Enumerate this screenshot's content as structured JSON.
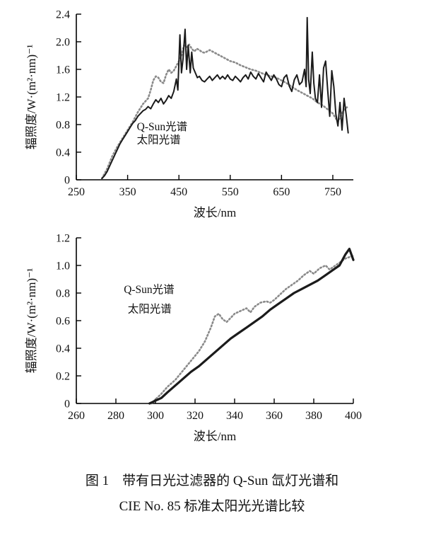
{
  "colors": {
    "axis": "#000000",
    "qsun_line_top": "#1b1b1b",
    "solar_dotted_top": "#8a8a8a",
    "qsun_dotted_bottom": "#8a8a8a",
    "solar_line_bottom": "#1b1b1b",
    "background": "#ffffff"
  },
  "caption": {
    "line1": "图 1　带有日光过滤器的 Q-Sun 氙灯光谱和",
    "line2": "CIE No. 85 标准太阳光光谱比较"
  },
  "chart_data": [
    {
      "type": "line",
      "title": "",
      "xlabel": "波长/nm",
      "ylabel": "辐照度/W·(m²·nm)⁻¹",
      "xlim": [
        250,
        790
      ],
      "ylim": [
        0,
        2.4
      ],
      "xticks": [
        250,
        350,
        450,
        550,
        650,
        750
      ],
      "xtick_labels": [
        "250",
        "350",
        "450",
        "550",
        "650",
        "750"
      ],
      "yticks": [
        0,
        0.4,
        0.8,
        1.2,
        1.6,
        2.0,
        2.4
      ],
      "ytick_labels": [
        "0",
        "0.4",
        "0.8",
        "1.2",
        "1.6",
        "2.0",
        "2.4"
      ],
      "grid": false,
      "legend_position": "inside-left",
      "annotations": [
        {
          "text": "Q-Sun光谱",
          "x": 368,
          "y": 0.72
        },
        {
          "text": "太阳光谱",
          "x": 368,
          "y": 0.53
        }
      ],
      "series": [
        {
          "name": "太阳光谱",
          "style": "dotted",
          "color": "#8a8a8a",
          "width": 2.6,
          "points": [
            [
              300,
              0.02
            ],
            [
              310,
              0.16
            ],
            [
              320,
              0.34
            ],
            [
              330,
              0.48
            ],
            [
              340,
              0.6
            ],
            [
              350,
              0.72
            ],
            [
              360,
              0.84
            ],
            [
              370,
              0.98
            ],
            [
              380,
              1.1
            ],
            [
              390,
              1.18
            ],
            [
              395,
              1.3
            ],
            [
              400,
              1.44
            ],
            [
              405,
              1.5
            ],
            [
              410,
              1.48
            ],
            [
              415,
              1.42
            ],
            [
              420,
              1.4
            ],
            [
              425,
              1.52
            ],
            [
              430,
              1.6
            ],
            [
              435,
              1.55
            ],
            [
              440,
              1.58
            ],
            [
              445,
              1.65
            ],
            [
              450,
              1.72
            ],
            [
              455,
              1.8
            ],
            [
              460,
              1.95
            ],
            [
              465,
              1.92
            ],
            [
              470,
              1.96
            ],
            [
              475,
              1.9
            ],
            [
              480,
              1.86
            ],
            [
              485,
              1.9
            ],
            [
              490,
              1.88
            ],
            [
              495,
              1.85
            ],
            [
              500,
              1.84
            ],
            [
              510,
              1.88
            ],
            [
              520,
              1.84
            ],
            [
              530,
              1.8
            ],
            [
              540,
              1.76
            ],
            [
              550,
              1.72
            ],
            [
              560,
              1.7
            ],
            [
              570,
              1.66
            ],
            [
              580,
              1.63
            ],
            [
              590,
              1.6
            ],
            [
              600,
              1.58
            ],
            [
              610,
              1.55
            ],
            [
              620,
              1.52
            ],
            [
              630,
              1.5
            ],
            [
              640,
              1.48
            ],
            [
              650,
              1.44
            ],
            [
              660,
              1.4
            ],
            [
              670,
              1.35
            ],
            [
              680,
              1.3
            ],
            [
              690,
              1.26
            ],
            [
              700,
              1.22
            ],
            [
              710,
              1.18
            ],
            [
              720,
              1.12
            ],
            [
              730,
              1.08
            ],
            [
              740,
              1.02
            ],
            [
              750,
              0.96
            ],
            [
              755,
              0.9
            ],
            [
              760,
              0.84
            ],
            [
              765,
              0.92
            ],
            [
              770,
              1.0
            ],
            [
              775,
              1.04
            ],
            [
              780,
              1.06
            ]
          ]
        },
        {
          "name": "Q-Sun光谱",
          "style": "solid",
          "color": "#1b1b1b",
          "width": 2,
          "points": [
            [
              300,
              0.02
            ],
            [
              305,
              0.06
            ],
            [
              310,
              0.12
            ],
            [
              315,
              0.2
            ],
            [
              320,
              0.28
            ],
            [
              325,
              0.36
            ],
            [
              330,
              0.44
            ],
            [
              335,
              0.52
            ],
            [
              340,
              0.58
            ],
            [
              345,
              0.64
            ],
            [
              350,
              0.7
            ],
            [
              355,
              0.76
            ],
            [
              360,
              0.82
            ],
            [
              365,
              0.86
            ],
            [
              370,
              0.92
            ],
            [
              375,
              0.96
            ],
            [
              380,
              1.0
            ],
            [
              385,
              1.02
            ],
            [
              390,
              1.06
            ],
            [
              395,
              1.03
            ],
            [
              400,
              1.1
            ],
            [
              405,
              1.16
            ],
            [
              410,
              1.12
            ],
            [
              415,
              1.18
            ],
            [
              420,
              1.1
            ],
            [
              425,
              1.15
            ],
            [
              430,
              1.22
            ],
            [
              435,
              1.18
            ],
            [
              440,
              1.28
            ],
            [
              445,
              1.46
            ],
            [
              448,
              1.3
            ],
            [
              452,
              2.1
            ],
            [
              455,
              1.55
            ],
            [
              458,
              1.75
            ],
            [
              462,
              2.18
            ],
            [
              465,
              1.6
            ],
            [
              468,
              1.95
            ],
            [
              472,
              1.55
            ],
            [
              475,
              1.85
            ],
            [
              478,
              1.62
            ],
            [
              482,
              1.55
            ],
            [
              486,
              1.48
            ],
            [
              490,
              1.5
            ],
            [
              495,
              1.44
            ],
            [
              500,
              1.42
            ],
            [
              505,
              1.46
            ],
            [
              510,
              1.5
            ],
            [
              515,
              1.44
            ],
            [
              520,
              1.48
            ],
            [
              525,
              1.52
            ],
            [
              530,
              1.46
            ],
            [
              535,
              1.5
            ],
            [
              540,
              1.46
            ],
            [
              545,
              1.52
            ],
            [
              550,
              1.46
            ],
            [
              555,
              1.44
            ],
            [
              560,
              1.5
            ],
            [
              565,
              1.46
            ],
            [
              570,
              1.42
            ],
            [
              575,
              1.48
            ],
            [
              580,
              1.52
            ],
            [
              585,
              1.46
            ],
            [
              590,
              1.56
            ],
            [
              595,
              1.5
            ],
            [
              600,
              1.46
            ],
            [
              605,
              1.54
            ],
            [
              610,
              1.48
            ],
            [
              615,
              1.42
            ],
            [
              620,
              1.56
            ],
            [
              625,
              1.5
            ],
            [
              630,
              1.44
            ],
            [
              635,
              1.52
            ],
            [
              640,
              1.46
            ],
            [
              645,
              1.38
            ],
            [
              650,
              1.35
            ],
            [
              655,
              1.48
            ],
            [
              660,
              1.52
            ],
            [
              665,
              1.36
            ],
            [
              670,
              1.28
            ],
            [
              675,
              1.45
            ],
            [
              680,
              1.52
            ],
            [
              685,
              1.38
            ],
            [
              690,
              1.42
            ],
            [
              695,
              1.6
            ],
            [
              698,
              1.35
            ],
            [
              700,
              2.35
            ],
            [
              703,
              1.45
            ],
            [
              706,
              1.25
            ],
            [
              710,
              1.85
            ],
            [
              713,
              1.4
            ],
            [
              716,
              1.18
            ],
            [
              720,
              1.12
            ],
            [
              724,
              1.52
            ],
            [
              728,
              1.05
            ],
            [
              732,
              1.62
            ],
            [
              736,
              1.72
            ],
            [
              740,
              1.3
            ],
            [
              744,
              0.92
            ],
            [
              748,
              1.58
            ],
            [
              752,
              1.35
            ],
            [
              756,
              0.95
            ],
            [
              760,
              0.78
            ],
            [
              764,
              1.12
            ],
            [
              768,
              0.72
            ],
            [
              772,
              1.18
            ],
            [
              776,
              0.95
            ],
            [
              780,
              0.68
            ]
          ]
        }
      ]
    },
    {
      "type": "line",
      "title": "",
      "xlabel": "波长/nm",
      "ylabel": "辐照度/W·(m²·nm)⁻¹",
      "xlim": [
        260,
        400
      ],
      "ylim": [
        0,
        1.2
      ],
      "xticks": [
        260,
        280,
        300,
        320,
        340,
        360,
        380,
        400
      ],
      "xtick_labels": [
        "260",
        "280",
        "300",
        "320",
        "340",
        "360",
        "380",
        "400"
      ],
      "yticks": [
        0,
        0.2,
        0.4,
        0.6,
        0.8,
        1.0,
        1.2
      ],
      "ytick_labels": [
        "0",
        "0.2",
        "0.4",
        "0.6",
        "0.8",
        "1.0",
        "1.2"
      ],
      "grid": false,
      "legend_position": "inside-left",
      "annotations": [
        {
          "text": "Q-Sun光谱",
          "x": 284,
          "y": 0.8
        },
        {
          "text": "太阳光谱",
          "x": 286,
          "y": 0.66
        }
      ],
      "series": [
        {
          "name": "Q-Sun光谱",
          "style": "dotted",
          "color": "#8a8a8a",
          "width": 2.6,
          "points": [
            [
              298,
              0.0
            ],
            [
              300,
              0.03
            ],
            [
              303,
              0.07
            ],
            [
              306,
              0.12
            ],
            [
              310,
              0.17
            ],
            [
              314,
              0.24
            ],
            [
              318,
              0.31
            ],
            [
              322,
              0.38
            ],
            [
              325,
              0.45
            ],
            [
              328,
              0.55
            ],
            [
              330,
              0.63
            ],
            [
              332,
              0.65
            ],
            [
              334,
              0.61
            ],
            [
              336,
              0.59
            ],
            [
              338,
              0.62
            ],
            [
              340,
              0.65
            ],
            [
              343,
              0.67
            ],
            [
              346,
              0.69
            ],
            [
              348,
              0.66
            ],
            [
              350,
              0.7
            ],
            [
              353,
              0.73
            ],
            [
              356,
              0.74
            ],
            [
              358,
              0.73
            ],
            [
              360,
              0.75
            ],
            [
              363,
              0.79
            ],
            [
              366,
              0.83
            ],
            [
              369,
              0.86
            ],
            [
              372,
              0.89
            ],
            [
              375,
              0.93
            ],
            [
              378,
              0.96
            ],
            [
              380,
              0.94
            ],
            [
              383,
              0.98
            ],
            [
              386,
              1.0
            ],
            [
              388,
              0.97
            ],
            [
              390,
              0.99
            ],
            [
              393,
              1.02
            ],
            [
              396,
              1.05
            ],
            [
              400,
              1.07
            ]
          ]
        },
        {
          "name": "太阳光谱",
          "style": "solid",
          "color": "#1b1b1b",
          "width": 3.2,
          "points": [
            [
              297,
              0.0
            ],
            [
              300,
              0.02
            ],
            [
              303,
              0.04
            ],
            [
              306,
              0.08
            ],
            [
              310,
              0.13
            ],
            [
              314,
              0.18
            ],
            [
              318,
              0.23
            ],
            [
              322,
              0.27
            ],
            [
              326,
              0.32
            ],
            [
              330,
              0.37
            ],
            [
              334,
              0.42
            ],
            [
              338,
              0.47
            ],
            [
              342,
              0.51
            ],
            [
              346,
              0.55
            ],
            [
              350,
              0.59
            ],
            [
              354,
              0.63
            ],
            [
              358,
              0.68
            ],
            [
              362,
              0.72
            ],
            [
              366,
              0.76
            ],
            [
              370,
              0.8
            ],
            [
              374,
              0.83
            ],
            [
              378,
              0.86
            ],
            [
              382,
              0.89
            ],
            [
              386,
              0.93
            ],
            [
              390,
              0.97
            ],
            [
              393,
              1.0
            ],
            [
              396,
              1.08
            ],
            [
              398,
              1.12
            ],
            [
              400,
              1.04
            ]
          ]
        }
      ]
    }
  ]
}
